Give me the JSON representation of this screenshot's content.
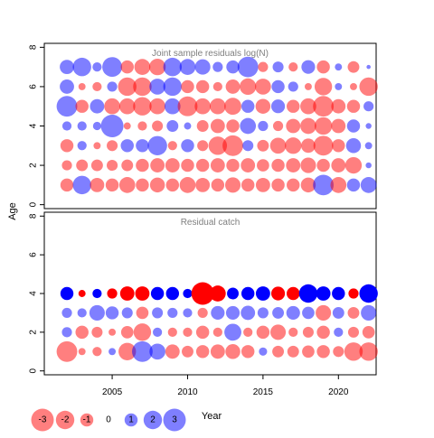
{
  "chart_data": {
    "type": "scatter",
    "ylabel": "Age",
    "xlabel": "Year",
    "colors": {
      "negative": "#ff0000",
      "positive": "#0000ff",
      "axis": "#000000",
      "title_text": "#7f7f7f"
    },
    "x_range": [
      2000.5,
      2022.5
    ],
    "x_ticks": [
      "2005",
      "2010",
      "2015",
      "2020"
    ],
    "y_range": [
      -0.2,
      8.2
    ],
    "y_ticks": [
      "0",
      "2",
      "4",
      "6",
      "8"
    ],
    "years": [
      2002,
      2003,
      2004,
      2005,
      2006,
      2007,
      2008,
      2009,
      2010,
      2011,
      2012,
      2013,
      2014,
      2015,
      2016,
      2017,
      2018,
      2019,
      2020,
      2021,
      2022
    ],
    "panels": [
      {
        "title": "Joint sample residuals log(N)",
        "alpha": 0.5,
        "ages": [
          1,
          2,
          3,
          4,
          5,
          6,
          7
        ],
        "residuals": [
          [
            -1.0,
            2.0,
            -1.2,
            -1.0,
            -1.5,
            -1.0,
            -1.3,
            -1.0,
            -1.5,
            -1.2,
            -1.0,
            -1.4,
            -1.0,
            -1.2,
            -1.0,
            -1.0,
            -1.3,
            2.5,
            -1.5,
            1.0,
            1.5
          ],
          [
            -0.6,
            -0.8,
            -0.8,
            -0.7,
            -0.8,
            -1.0,
            -1.2,
            -1.2,
            -1.0,
            -1.0,
            -1.2,
            -1.0,
            -1.2,
            -0.9,
            -1.0,
            -1.2,
            -1.4,
            -1.0,
            -1.2,
            -1.6,
            0.2
          ],
          [
            -1.0,
            0.5,
            -0.3,
            -0.7,
            1.0,
            1.0,
            2.2,
            -0.5,
            1.0,
            -0.7,
            -2.0,
            -2.5,
            0.7,
            -0.8,
            -1.5,
            -1.6,
            -1.2,
            -2.3,
            -1.0,
            1.3,
            0.3
          ],
          [
            0.5,
            0.5,
            0.4,
            3.0,
            -0.3,
            -0.5,
            -0.7,
            0.8,
            0.3,
            -0.8,
            -1.2,
            -1.0,
            1.5,
            0.6,
            -0.6,
            -1.2,
            -1.5,
            -1.8,
            -1.2,
            1.0,
            0.2
          ],
          [
            2.5,
            -1.0,
            1.2,
            -1.5,
            -1.5,
            -2.0,
            -1.5,
            1.5,
            -2.3,
            -1.5,
            -1.5,
            -1.7,
            1.0,
            -1.3,
            1.1,
            -1.0,
            -1.5,
            -2.5,
            -1.2,
            -1.0,
            0.6
          ],
          [
            1.2,
            -0.3,
            -0.5,
            0.6,
            -2.0,
            -2.0,
            1.5,
            2.0,
            -1.0,
            -1.0,
            -0.5,
            -1.2,
            -1.6,
            -1.5,
            1.0,
            0.6,
            -0.3,
            -1.8,
            0.3,
            -0.3,
            -2.0
          ],
          [
            1.2,
            2.0,
            0.5,
            2.3,
            -1.0,
            -1.5,
            -1.6,
            2.0,
            1.5,
            1.4,
            0.6,
            1.0,
            2.5,
            -0.6,
            0.7,
            -0.5,
            1.1,
            -1.0,
            0.3,
            -0.8,
            0.1
          ]
        ]
      },
      {
        "title": "Residual catch",
        "alpha": 0.5,
        "ages": [
          1,
          2,
          3,
          4
        ],
        "residuals": [
          [
            -2.5,
            -0.3,
            -0.5,
            0.3,
            -1.8,
            2.5,
            1.5,
            -1.2,
            -0.8,
            -1.0,
            -1.2,
            -1.3,
            -1.0,
            0.4,
            -0.8,
            -0.8,
            -0.9,
            -1.0,
            -0.7,
            -2.0,
            -2.0
          ],
          [
            0.6,
            -1.0,
            -0.7,
            -0.3,
            -0.9,
            -1.8,
            0.5,
            -0.5,
            -0.5,
            -1.0,
            -0.5,
            1.7,
            -0.5,
            -1.0,
            -1.4,
            -0.5,
            -0.7,
            -1.0,
            0.5,
            -0.7,
            -0.9
          ],
          [
            0.6,
            0.5,
            1.4,
            1.0,
            0.7,
            -0.9,
            0.7,
            0.6,
            0.5,
            -0.6,
            1.1,
            1.1,
            1.2,
            0.7,
            0.8,
            1.1,
            0.9,
            -1.4,
            0.8,
            -0.8,
            1.4
          ]
        ],
        "top_row": {
          "age": 4,
          "alpha": 1.0,
          "residuals": [
            1.0,
            -0.3,
            0.5,
            -0.6,
            -1.2,
            -1.2,
            1.0,
            1.0,
            0.5,
            -3.0,
            -1.5,
            0.8,
            1.0,
            1.2,
            -1.1,
            -1.0,
            2.0,
            1.2,
            1.0,
            -0.6,
            2.0
          ]
        }
      }
    ],
    "legend": {
      "values": [
        -3,
        -2,
        -1,
        0,
        1,
        2,
        3
      ],
      "labels": [
        "-3",
        "-2",
        "-1",
        "0",
        "1",
        "2",
        "3"
      ]
    }
  }
}
